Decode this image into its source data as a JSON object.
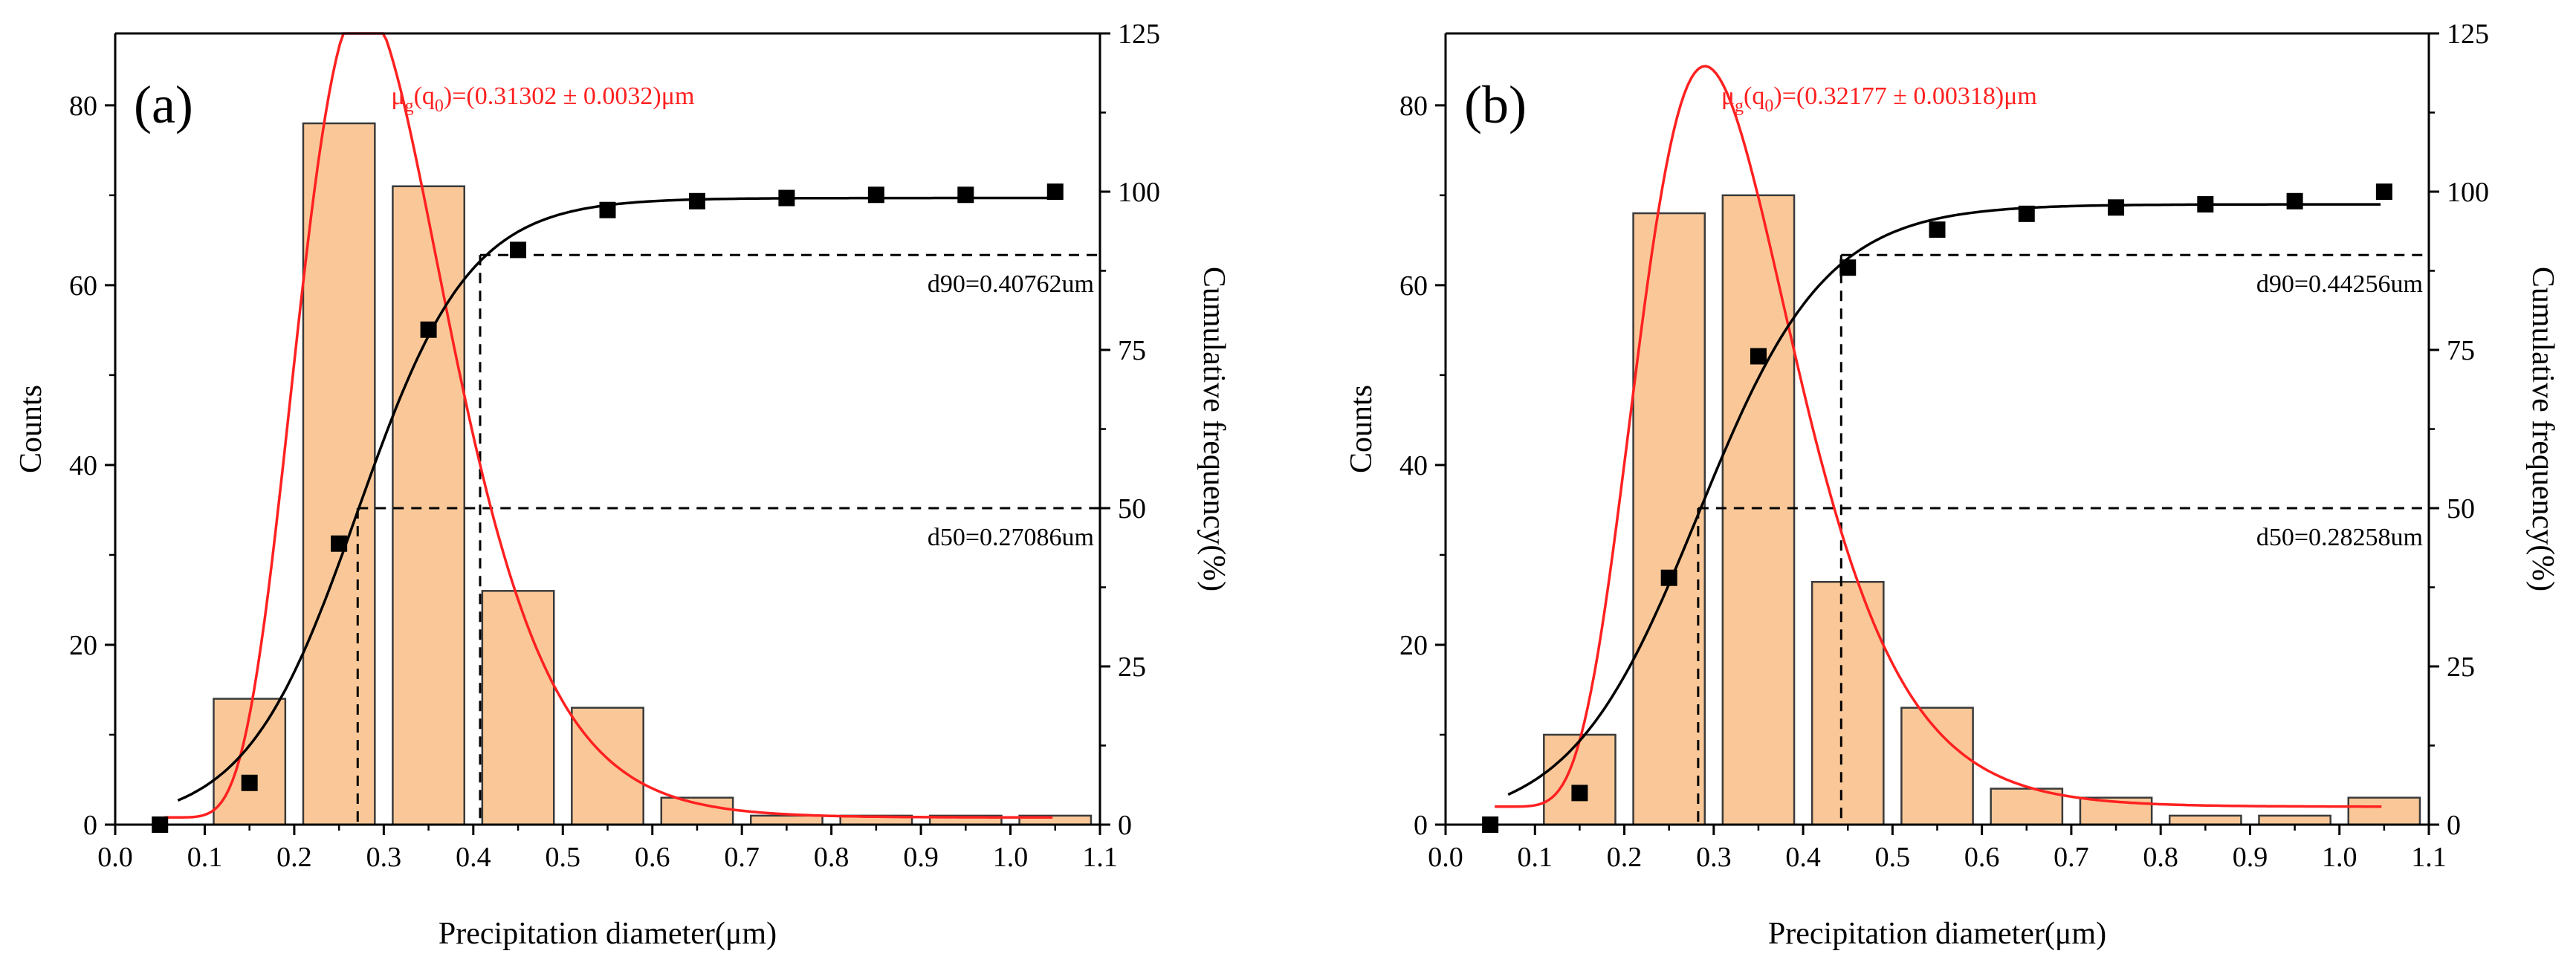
{
  "colors": {
    "bar_fill": "#FAC898",
    "bar_stroke": "#3a3a3a",
    "fit_curve": "#ff2020",
    "cumulative_curve": "#000000",
    "markers": "#000000",
    "axis": "#000000"
  },
  "chart_data": [
    {
      "type": "bar",
      "panel_label": "(a)",
      "xlabel": "Precipitation diameter(μm)",
      "ylabel": "Counts",
      "ylabel_right": "Cumulative frequency(%)",
      "xlim": [
        0.0,
        1.1
      ],
      "ylim": [
        0,
        88
      ],
      "ylim_right": [
        0,
        125
      ],
      "x_ticks": [
        "0.0",
        "0.1",
        "0.2",
        "0.3",
        "0.4",
        "0.5",
        "0.6",
        "0.7",
        "0.8",
        "0.9",
        "1.0",
        "1.1"
      ],
      "y_ticks": [
        "0",
        "20",
        "40",
        "60",
        "80"
      ],
      "y_ticks_right": [
        "0",
        "25",
        "50",
        "75",
        "100",
        "125"
      ],
      "bin_width": 0.08,
      "bins": [
        0.05,
        0.15,
        0.25,
        0.35,
        0.45,
        0.55,
        0.65,
        0.75,
        0.85,
        0.95,
        1.05
      ],
      "values": [
        0,
        14,
        78,
        71,
        26,
        13,
        3,
        1,
        1,
        1,
        1
      ],
      "cumulative": {
        "x": [
          0.05,
          0.15,
          0.25,
          0.35,
          0.45,
          0.55,
          0.65,
          0.75,
          0.85,
          0.95,
          1.05
        ],
        "y": [
          0,
          6.6,
          44.4,
          78.2,
          90.8,
          97.1,
          98.5,
          99.0,
          99.5,
          99.5,
          100
        ]
      },
      "lognormal_fit": {
        "peak_x": 0.285,
        "peak_y": 85.5,
        "median": 0.3025,
        "sigma": 0.3,
        "scale": 26.2,
        "baseline": 0.8
      },
      "cumulative_fit": {
        "x0": 0.27086,
        "k": 16,
        "max": 99
      },
      "annotation": {
        "mu_symbol": "μ",
        "mu_subscript": "g",
        "q_symbol": "(q",
        "q_subscript": "0",
        "value": ")=(0.31302 ± 0.0032)μm"
      },
      "d90_label": "d90=0.40762um",
      "d90_value": 0.40762,
      "d90_percent": 90,
      "d50_label": "d50=0.27086um",
      "d50_value": 0.27086,
      "d50_percent": 50
    },
    {
      "type": "bar",
      "panel_label": "(b)",
      "xlabel": "Precipitation diameter(μm)",
      "ylabel": "Counts",
      "ylabel_right": "Cumulative frequency(%)",
      "xlim": [
        0.0,
        1.1
      ],
      "ylim": [
        0,
        88
      ],
      "ylim_right": [
        0,
        125
      ],
      "x_ticks": [
        "0.0",
        "0.1",
        "0.2",
        "0.3",
        "0.4",
        "0.5",
        "0.6",
        "0.7",
        "0.8",
        "0.9",
        "1.0",
        "1.1"
      ],
      "y_ticks": [
        "0",
        "20",
        "40",
        "60",
        "80"
      ],
      "y_ticks_right": [
        "0",
        "25",
        "50",
        "75",
        "100",
        "125"
      ],
      "bin_width": 0.08,
      "bins": [
        0.05,
        0.15,
        0.25,
        0.35,
        0.45,
        0.55,
        0.65,
        0.75,
        0.85,
        0.95,
        1.05
      ],
      "values": [
        0,
        10,
        68,
        70,
        27,
        13,
        4,
        3,
        1,
        1,
        3
      ],
      "cumulative": {
        "x": [
          0.05,
          0.15,
          0.25,
          0.35,
          0.45,
          0.55,
          0.65,
          0.75,
          0.85,
          0.95,
          1.05
        ],
        "y": [
          0,
          5.0,
          39.0,
          74.0,
          88.0,
          94.0,
          96.5,
          97.5,
          98.0,
          98.5,
          100
        ]
      },
      "lognormal_fit": {
        "peak_x": 0.295,
        "peak_y": 80.0,
        "median": 0.3175,
        "sigma": 0.3,
        "scale": 25.0,
        "baseline": 2.0
      },
      "cumulative_fit": {
        "x0": 0.28258,
        "k": 14,
        "max": 98
      },
      "annotation": {
        "mu_symbol": "μ",
        "mu_subscript": "g",
        "q_symbol": "(q",
        "q_subscript": "0",
        "value": ")=(0.32177 ± 0.00318)μm"
      },
      "d90_label": "d90=0.44256um",
      "d90_value": 0.44256,
      "d90_percent": 90,
      "d50_label": "d50=0.28258um",
      "d50_value": 0.28258,
      "d50_percent": 50
    }
  ]
}
